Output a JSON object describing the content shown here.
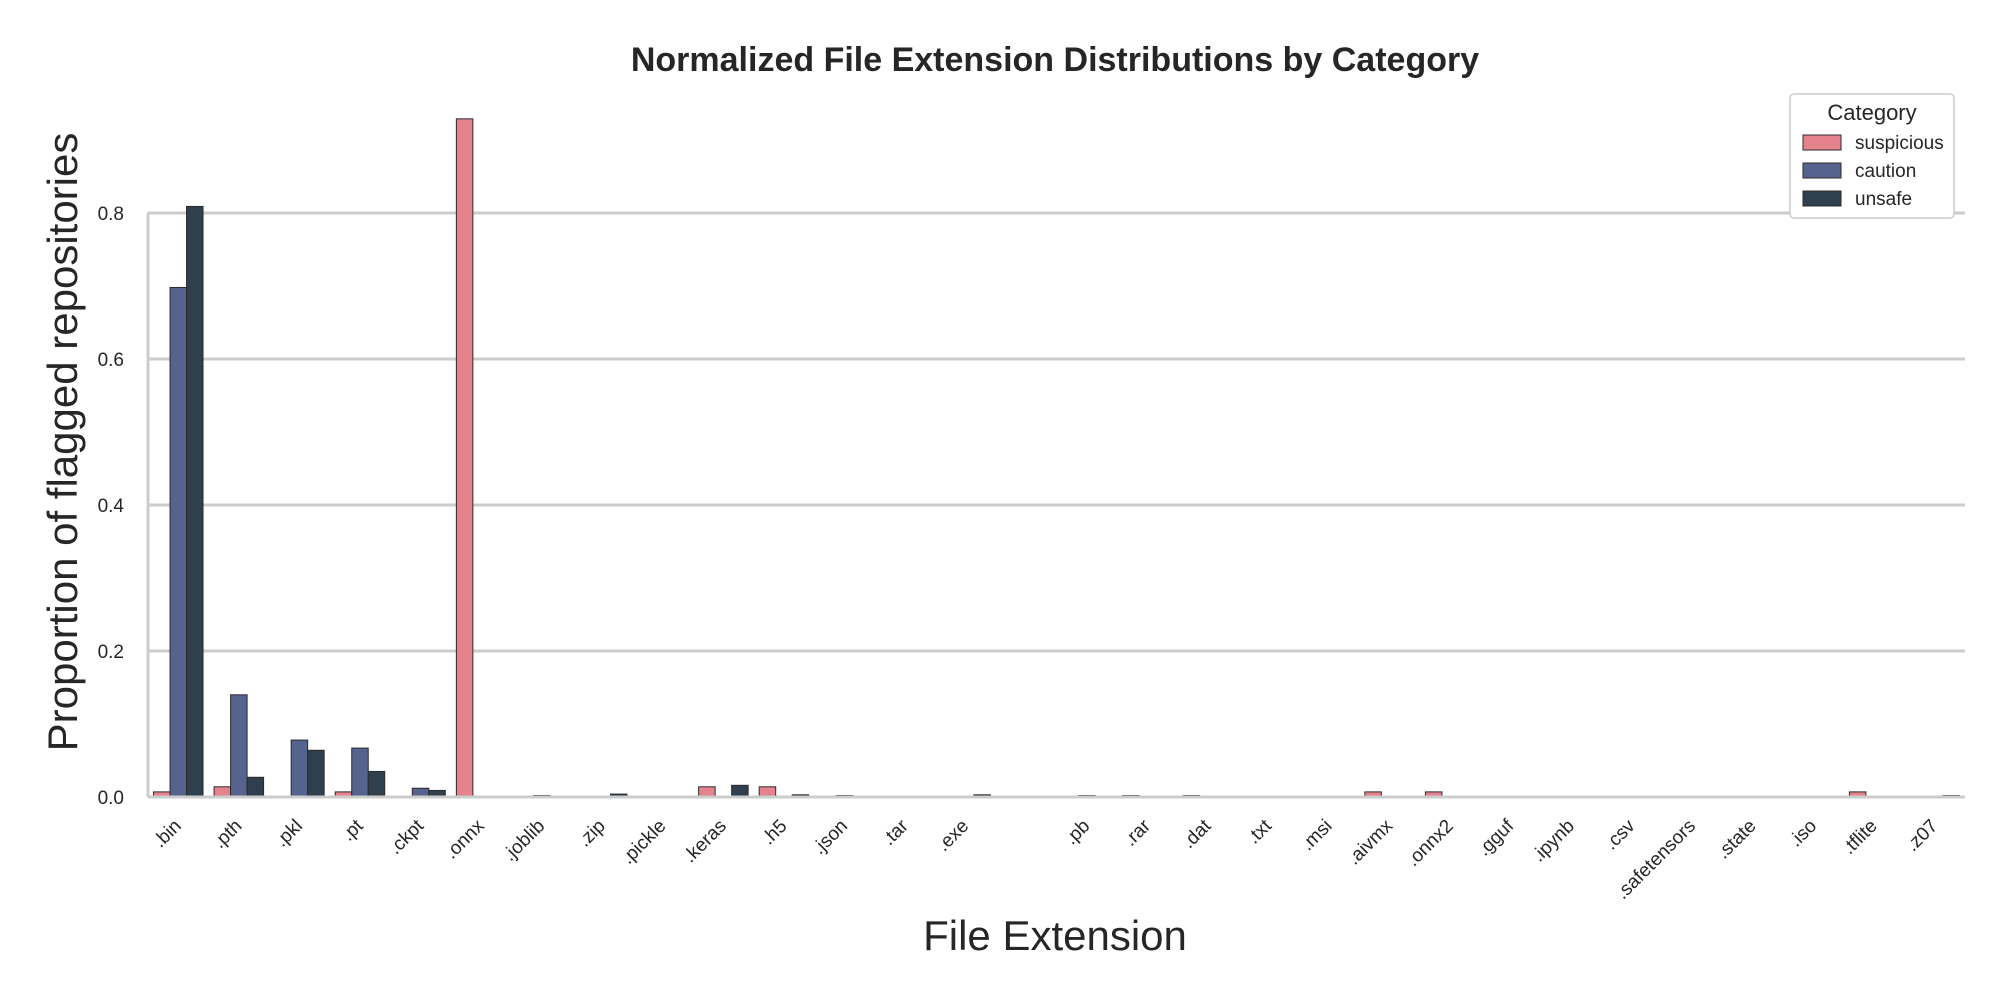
{
  "chart_data": {
    "type": "bar",
    "title": "Normalized File Extension Distributions by Category",
    "xlabel": "File Extension",
    "ylabel": "Proportion of flagged repositories",
    "ylim": [
      0,
      0.95
    ],
    "yticks": [
      "0.0",
      "0.2",
      "0.4",
      "0.6",
      "0.8"
    ],
    "ytick_values": [
      0,
      0.2,
      0.4,
      0.6,
      0.8
    ],
    "grid": "horizontal",
    "legend_title": "Category",
    "legend_position": "top-right",
    "categories": [
      ".bin",
      ".pth",
      ".pkl",
      ".pt",
      ".ckpt",
      ".onnx",
      ".joblib",
      ".zip",
      ".pickle",
      ".keras",
      ".h5",
      ".json",
      ".tar",
      ".exe",
      "",
      ".pb",
      ".rar",
      ".dat",
      ".txt",
      ".msi",
      ".aivmx",
      ".onnx2",
      ".gguf",
      ".ipynb",
      ".csv",
      ".safetensors",
      ".state",
      ".iso",
      ".tflite",
      ".z07"
    ],
    "series": [
      {
        "name": "suspicious",
        "color": "#e5838d",
        "values": [
          0.007,
          0.014,
          0,
          0.007,
          0,
          0.929,
          0,
          0,
          0,
          0.014,
          0.014,
          0,
          0,
          0,
          0,
          0,
          0.002,
          0.002,
          0,
          0,
          0.007,
          0.007,
          0,
          0,
          0,
          0,
          0,
          0,
          0.007,
          0
        ]
      },
      {
        "name": "caution",
        "color": "#56638f",
        "values": [
          0.698,
          0.14,
          0.078,
          0.067,
          0.012,
          0,
          0.002,
          0,
          0,
          0,
          0,
          0.002,
          0,
          0,
          0,
          0.002,
          0,
          0,
          0,
          0,
          0,
          0,
          0,
          0,
          0,
          0,
          0,
          0,
          0,
          0
        ]
      },
      {
        "name": "unsafe",
        "color": "#2f3f4e",
        "values": [
          0.809,
          0.027,
          0.064,
          0.035,
          0.009,
          0,
          0,
          0.004,
          0,
          0.016,
          0.003,
          0,
          0,
          0.003,
          0,
          0,
          0,
          0,
          0,
          0,
          0,
          0,
          0,
          0,
          0,
          0,
          0,
          0,
          0,
          0.002
        ]
      }
    ]
  }
}
